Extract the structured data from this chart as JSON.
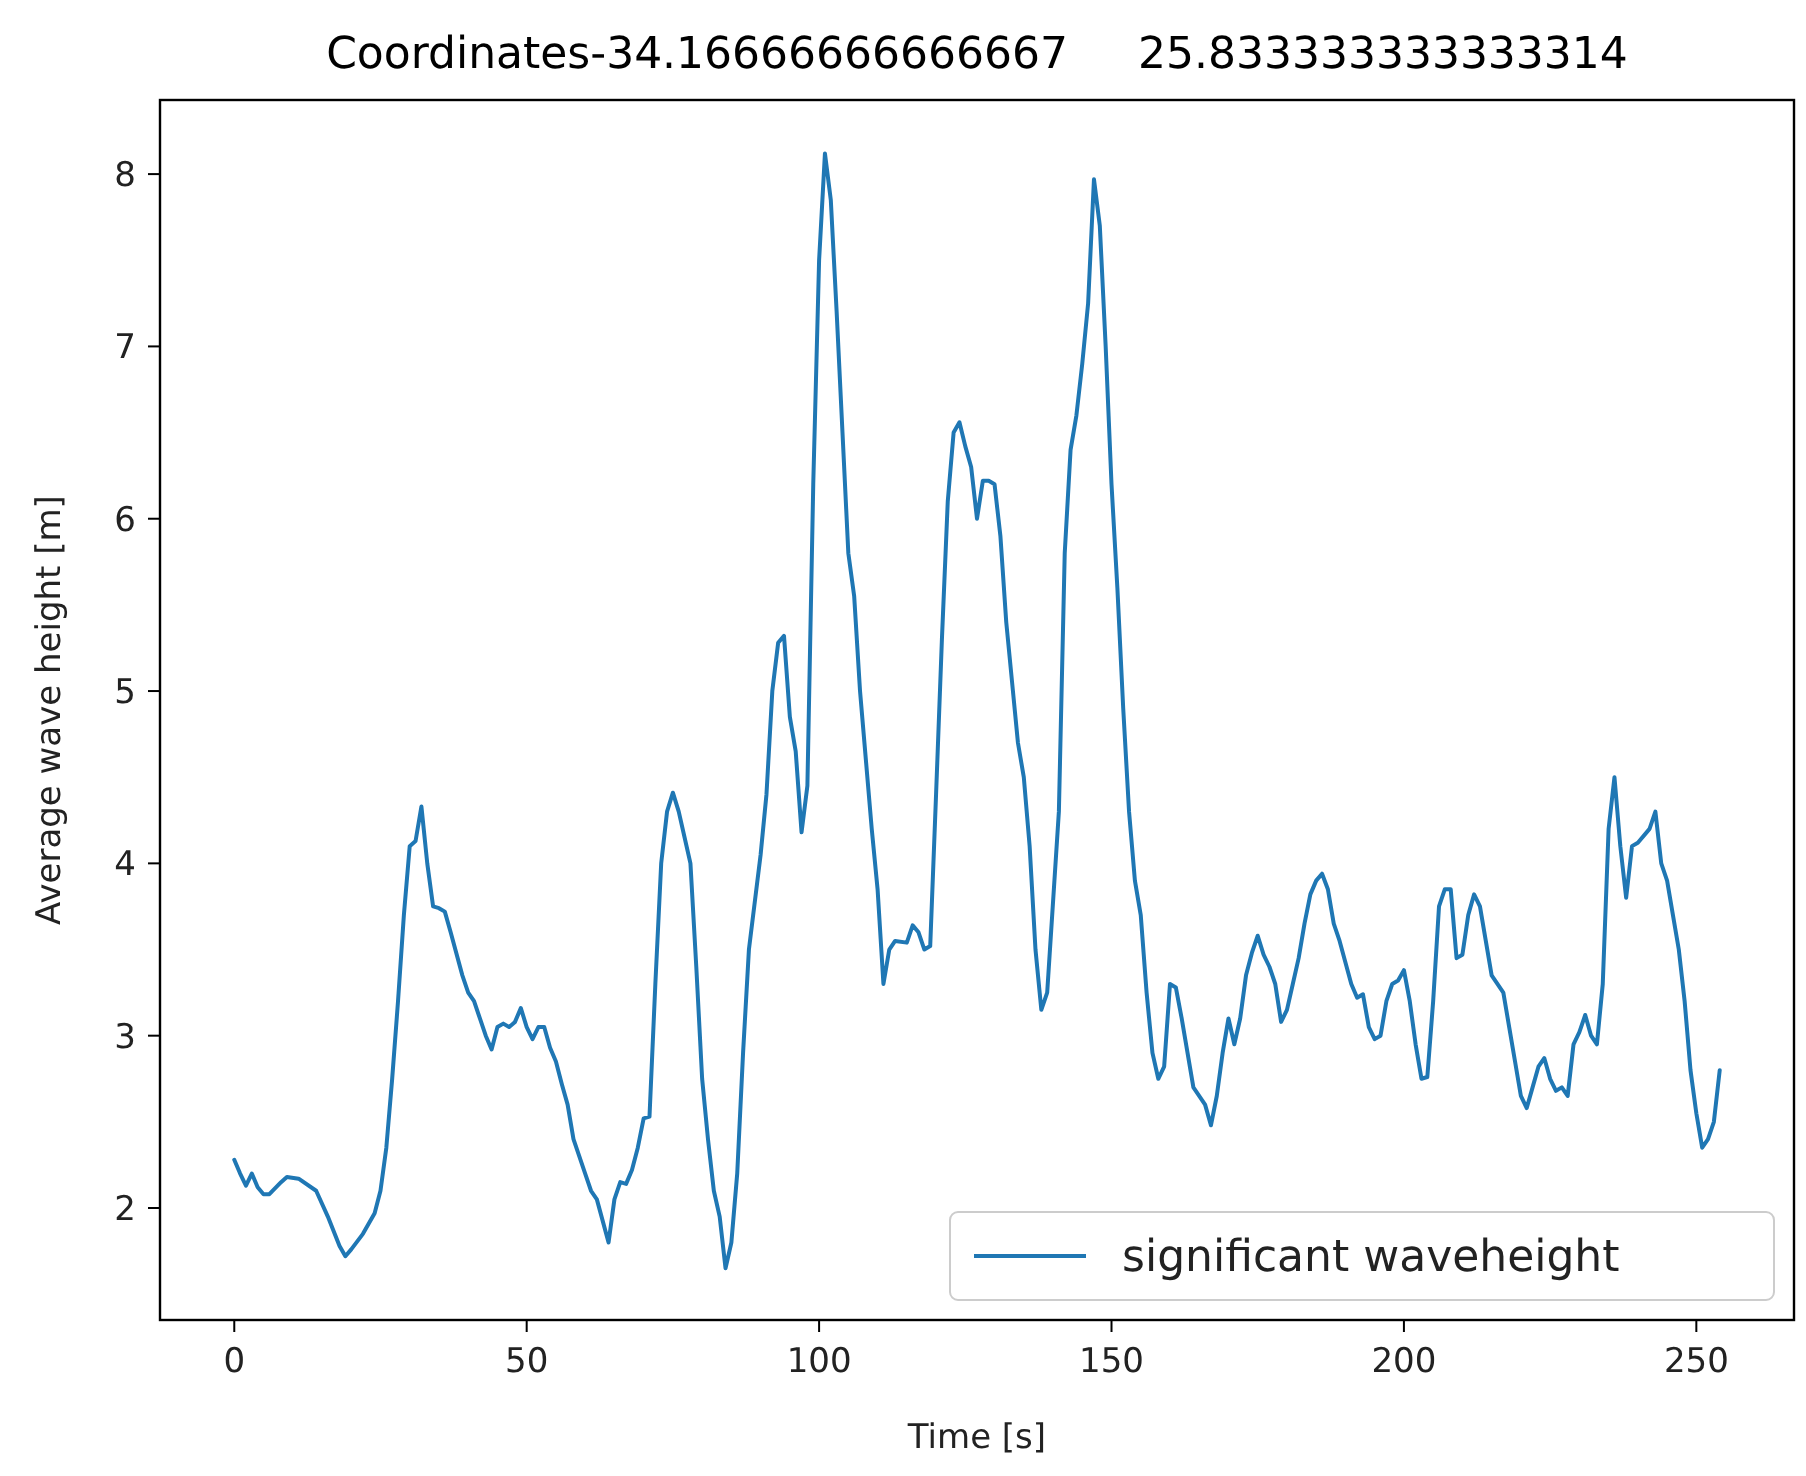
{
  "chart_data": {
    "type": "line",
    "title": "Coordinates-34.16666666666667     25.833333333333314",
    "xlabel": "Time [s]",
    "ylabel": "Average wave height [m]",
    "legend": "bottom right",
    "xlim": [
      -12.7,
      266.7
    ],
    "ylim": [
      1.35,
      8.43
    ],
    "xticks": [
      0,
      50,
      100,
      150,
      200,
      250
    ],
    "yticks": [
      2,
      3,
      4,
      5,
      6,
      7,
      8
    ],
    "series": [
      {
        "name": "significant waveheight",
        "color": "#1f77b4",
        "x": [
          0,
          1,
          2,
          3,
          4,
          5,
          6,
          8,
          9,
          11,
          14,
          16,
          18,
          19,
          20,
          22,
          24,
          25,
          26,
          27,
          28,
          29,
          30,
          31,
          32,
          33,
          34,
          35,
          36,
          37,
          39,
          40,
          41,
          42,
          43,
          44,
          45,
          46,
          47,
          48,
          49,
          50,
          51,
          52,
          53,
          54,
          55,
          56,
          57,
          58,
          59,
          60,
          61,
          62,
          64,
          65,
          66,
          67,
          68,
          69,
          70,
          71,
          72,
          73,
          74,
          75,
          76,
          77,
          78,
          79,
          80,
          81,
          82,
          83,
          84,
          85,
          86,
          87,
          88,
          90,
          91,
          92,
          93,
          94,
          95,
          96,
          97,
          98,
          99,
          100,
          101,
          102,
          103,
          104,
          105,
          106,
          107,
          108,
          109,
          110,
          111,
          112,
          113,
          115,
          116,
          117,
          118,
          119,
          120,
          121,
          122,
          123,
          124,
          125,
          126,
          127,
          128,
          129,
          130,
          131,
          132,
          133,
          134,
          135,
          136,
          137,
          138,
          139,
          141,
          142,
          143,
          144,
          145,
          146,
          147,
          148,
          149,
          150,
          151,
          152,
          153,
          154,
          155,
          156,
          157,
          158,
          159,
          160,
          161,
          162,
          163,
          164,
          166,
          167,
          168,
          169,
          170,
          171,
          172,
          173,
          174,
          175,
          176,
          177,
          178,
          179,
          180,
          181,
          182,
          183,
          184,
          185,
          186,
          187,
          188,
          189,
          191,
          192,
          193,
          194,
          195,
          196,
          197,
          198,
          199,
          200,
          201,
          202,
          203,
          204,
          205,
          206,
          207,
          208,
          209,
          210,
          211,
          212,
          213,
          214,
          215,
          217,
          218,
          219,
          220,
          221,
          222,
          223,
          224,
          225,
          226,
          227,
          228,
          229,
          230,
          231,
          232,
          233,
          234,
          235,
          236,
          237,
          238,
          239,
          240,
          242,
          243,
          244,
          245,
          246,
          247,
          248,
          249,
          250,
          251,
          252,
          253,
          254
        ],
        "values": [
          2.28,
          2.2,
          2.13,
          2.2,
          2.12,
          2.08,
          2.08,
          2.15,
          2.18,
          2.17,
          2.1,
          1.95,
          1.78,
          1.72,
          1.76,
          1.85,
          1.97,
          2.1,
          2.35,
          2.75,
          3.2,
          3.7,
          4.1,
          4.13,
          4.33,
          4.0,
          3.75,
          3.74,
          3.72,
          3.6,
          3.35,
          3.25,
          3.2,
          3.1,
          3.0,
          2.92,
          3.05,
          3.07,
          3.05,
          3.08,
          3.16,
          3.05,
          2.98,
          3.05,
          3.05,
          2.93,
          2.85,
          2.72,
          2.6,
          2.4,
          2.3,
          2.2,
          2.1,
          2.05,
          1.8,
          2.05,
          2.15,
          2.14,
          2.22,
          2.35,
          2.52,
          2.53,
          3.3,
          4.0,
          4.3,
          4.41,
          4.3,
          4.15,
          4.0,
          3.4,
          2.75,
          2.4,
          2.1,
          1.95,
          1.65,
          1.8,
          2.2,
          2.9,
          3.5,
          4.05,
          4.4,
          5.0,
          5.28,
          5.32,
          4.85,
          4.65,
          4.18,
          4.45,
          6.2,
          7.5,
          8.12,
          7.85,
          7.2,
          6.5,
          5.8,
          5.55,
          5.0,
          4.6,
          4.2,
          3.85,
          3.3,
          3.5,
          3.55,
          3.54,
          3.64,
          3.6,
          3.5,
          3.52,
          4.4,
          5.3,
          6.1,
          6.5,
          6.56,
          6.42,
          6.3,
          6.0,
          6.22,
          6.22,
          6.2,
          5.9,
          5.4,
          5.05,
          4.7,
          4.5,
          4.1,
          3.5,
          3.15,
          3.25,
          4.3,
          5.8,
          6.4,
          6.6,
          6.9,
          7.25,
          7.97,
          7.7,
          7.0,
          6.2,
          5.6,
          4.9,
          4.3,
          3.9,
          3.7,
          3.25,
          2.9,
          2.75,
          2.82,
          3.3,
          3.28,
          3.1,
          2.9,
          2.7,
          2.6,
          2.48,
          2.65,
          2.9,
          3.1,
          2.95,
          3.1,
          3.35,
          3.48,
          3.58,
          3.47,
          3.4,
          3.3,
          3.08,
          3.15,
          3.3,
          3.45,
          3.65,
          3.82,
          3.9,
          3.94,
          3.85,
          3.65,
          3.55,
          3.3,
          3.22,
          3.24,
          3.05,
          2.98,
          3.0,
          3.2,
          3.3,
          3.32,
          3.38,
          3.2,
          2.95,
          2.75,
          2.76,
          3.2,
          3.75,
          3.85,
          3.85,
          3.45,
          3.47,
          3.7,
          3.82,
          3.75,
          3.55,
          3.35,
          3.25,
          3.05,
          2.85,
          2.65,
          2.58,
          2.7,
          2.82,
          2.87,
          2.75,
          2.68,
          2.7,
          2.65,
          2.95,
          3.02,
          3.12,
          3.0,
          2.95,
          3.3,
          4.2,
          4.5,
          4.1,
          3.8,
          4.1,
          4.12,
          4.2,
          4.3,
          4.0,
          3.9,
          3.7,
          3.5,
          3.2,
          2.8,
          2.55,
          2.35,
          2.4,
          2.5,
          2.8
        ]
      }
    ]
  }
}
